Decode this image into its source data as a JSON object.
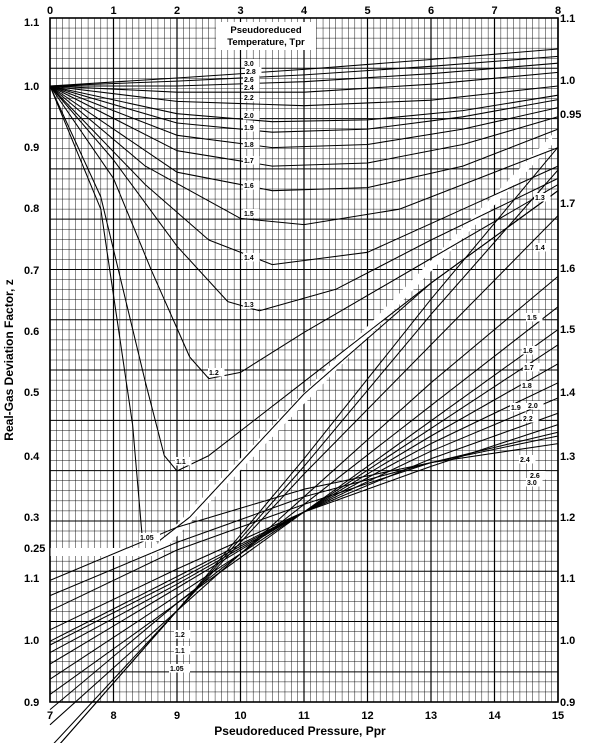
{
  "chart_data": {
    "type": "line",
    "title": "Pseudoreduced Temperature, Tpr",
    "xlabel": "Pseudoreduced Pressure, Ppr",
    "ylabel": "Real-Gas Deviation Factor, z",
    "grid": true,
    "upper_x_range": [
      0,
      8
    ],
    "upper_left_y_range": [
      0.25,
      1.1
    ],
    "upper_right_y_range": [
      0.95,
      1.8
    ],
    "lower_x_range": [
      7,
      15
    ],
    "lower_y_range": [
      0.9,
      1.15
    ],
    "upper_x_ticks": [
      "0",
      "1",
      "2",
      "3",
      "4",
      "5",
      "6",
      "7",
      "8"
    ],
    "upper_left_y_ticks": [
      "1.1",
      "1.0",
      "0.9",
      "0.8",
      "0.7",
      "0.6",
      "0.5",
      "0.4",
      "0.3",
      "0.25"
    ],
    "upper_right_y_ticks": [
      "1.1",
      "1.0",
      "0.95",
      "1.7",
      "1.6",
      "1.5",
      "1.4",
      "1.3",
      "1.2"
    ],
    "lower_x_ticks": [
      "7",
      "8",
      "9",
      "10",
      "11",
      "12",
      "13",
      "14",
      "15"
    ],
    "lower_y_ticks": [
      "1.1",
      "1.0",
      "0.9"
    ],
    "lower_right_y_ticks": [
      "1.1",
      "1.0",
      "0.9"
    ],
    "low_pressure_series": [
      {
        "name": "3.0",
        "x": [
          0,
          2,
          4,
          6,
          8
        ],
        "y": [
          1.0,
          1.013,
          1.027,
          1.043,
          1.06
        ]
      },
      {
        "name": "2.8",
        "x": [
          0,
          2,
          4,
          6,
          8
        ],
        "y": [
          1.0,
          1.008,
          1.018,
          1.032,
          1.048
        ]
      },
      {
        "name": "2.6",
        "x": [
          0,
          2,
          4,
          6,
          8
        ],
        "y": [
          1.0,
          1.0,
          1.007,
          1.02,
          1.037
        ]
      },
      {
        "name": "2.4",
        "x": [
          0,
          2,
          4,
          6,
          8
        ],
        "y": [
          1.0,
          0.99,
          0.99,
          1.003,
          1.022
        ]
      },
      {
        "name": "2.2",
        "x": [
          0,
          2,
          4,
          6,
          8
        ],
        "y": [
          1.0,
          0.975,
          0.968,
          0.977,
          1.0
        ]
      },
      {
        "name": "2.0",
        "x": [
          0,
          2,
          3.5,
          5,
          6.5,
          8
        ],
        "y": [
          1.0,
          0.955,
          0.942,
          0.945,
          0.96,
          0.985
        ]
      },
      {
        "name": "1.9",
        "x": [
          0,
          2,
          3.5,
          5,
          6.5,
          8
        ],
        "y": [
          1.0,
          0.94,
          0.925,
          0.93,
          0.95,
          0.978
        ]
      },
      {
        "name": "1.8",
        "x": [
          0,
          2,
          3.5,
          5,
          6.5,
          8
        ],
        "y": [
          1.0,
          0.92,
          0.9,
          0.905,
          0.93,
          0.965
        ]
      },
      {
        "name": "1.7",
        "x": [
          0,
          2,
          3.5,
          5,
          6.5,
          8
        ],
        "y": [
          1.0,
          0.895,
          0.87,
          0.875,
          0.905,
          0.95
        ]
      },
      {
        "name": "1.6",
        "x": [
          0,
          2,
          3.5,
          5,
          6.5,
          8
        ],
        "y": [
          1.0,
          0.86,
          0.83,
          0.835,
          0.87,
          0.93
        ]
      },
      {
        "name": "1.5",
        "x": [
          0,
          1.5,
          3,
          4,
          5.5,
          7,
          8
        ],
        "y": [
          1.0,
          0.87,
          0.785,
          0.775,
          0.8,
          0.86,
          0.9
        ]
      },
      {
        "name": "1.4",
        "x": [
          0,
          1.5,
          2.5,
          3.5,
          5,
          6.5,
          8
        ],
        "y": [
          1.0,
          0.84,
          0.75,
          0.71,
          0.73,
          0.8,
          0.87
        ]
      },
      {
        "name": "1.3",
        "x": [
          0,
          1,
          2,
          2.8,
          3.3,
          4.5,
          6,
          8
        ],
        "y": [
          1.0,
          0.88,
          0.74,
          0.65,
          0.635,
          0.67,
          0.75,
          0.85
        ]
      },
      {
        "name": "1.2",
        "x": [
          0,
          1,
          1.6,
          2.2,
          2.5,
          3,
          4,
          6,
          8
        ],
        "y": [
          1.0,
          0.85,
          0.7,
          0.56,
          0.525,
          0.535,
          0.6,
          0.72,
          0.84
        ]
      },
      {
        "name": "1.1",
        "x": [
          0,
          0.8,
          1.5,
          1.8,
          2,
          2.5,
          4,
          6,
          8
        ],
        "y": [
          1.0,
          0.82,
          0.52,
          0.4,
          0.375,
          0.4,
          0.52,
          0.68,
          0.83
        ]
      },
      {
        "name": "1.05",
        "x": [
          0,
          0.8,
          1.3,
          1.45,
          1.7,
          2.2,
          4,
          6,
          8
        ],
        "y": [
          1.0,
          0.8,
          0.45,
          0.27,
          0.26,
          0.3,
          0.5,
          0.68,
          0.83
        ]
      }
    ],
    "low_pressure_labels": [
      "3.0",
      "2.8",
      "2.6",
      "2.4",
      "2.2",
      "2.0",
      "1.9",
      "1.8",
      "1.7",
      "1.6",
      "1.5",
      "1.4",
      "1.3",
      "1.2",
      "1.1",
      "1.05"
    ],
    "high_pressure_series": [
      {
        "name": "3.0",
        "x": [
          7,
          9,
          11,
          13,
          15
        ],
        "y": [
          1.06,
          1.13,
          1.18,
          1.215,
          1.24
        ]
      },
      {
        "name": "2.6",
        "x": [
          7,
          9,
          11,
          13,
          15
        ],
        "y": [
          1.04,
          1.11,
          1.17,
          1.215,
          1.25
        ]
      },
      {
        "name": "2.4",
        "x": [
          7,
          9,
          11,
          13,
          15
        ],
        "y": [
          1.02,
          1.1,
          1.16,
          1.215,
          1.255
        ]
      },
      {
        "name": "2.2",
        "x": [
          7,
          9,
          11,
          13,
          15
        ],
        "y": [
          0.995,
          1.075,
          1.15,
          1.21,
          1.265
        ]
      },
      {
        "name": "2.0",
        "x": [
          7,
          9,
          11,
          13,
          15
        ],
        "y": [
          0.98,
          1.065,
          1.15,
          1.22,
          1.28
        ]
      },
      {
        "name": "1.9",
        "x": [
          7,
          9,
          11,
          13,
          15
        ],
        "y": [
          0.975,
          1.06,
          1.15,
          1.23,
          1.3
        ]
      },
      {
        "name": "1.8",
        "x": [
          7,
          9,
          11,
          13,
          15
        ],
        "y": [
          0.965,
          1.055,
          1.15,
          1.24,
          1.32
        ]
      },
      {
        "name": "1.7",
        "x": [
          7,
          9,
          11,
          13,
          15
        ],
        "y": [
          0.95,
          1.05,
          1.15,
          1.25,
          1.345
        ]
      },
      {
        "name": "1.6",
        "x": [
          7,
          9,
          11,
          13,
          15
        ],
        "y": [
          0.93,
          1.04,
          1.15,
          1.26,
          1.37
        ]
      },
      {
        "name": "1.5",
        "x": [
          7,
          9,
          11,
          13,
          15
        ],
        "y": [
          0.91,
          1.03,
          1.15,
          1.27,
          1.39
        ]
      },
      {
        "name": "1.4",
        "x": [
          7,
          9,
          11,
          13,
          15
        ],
        "y": [
          0.89,
          1.03,
          1.16,
          1.29,
          1.42
        ]
      },
      {
        "name": "1.3",
        "x": [
          7,
          9,
          11,
          13,
          15
        ],
        "y": [
          0.87,
          1.02,
          1.17,
          1.32,
          1.46
        ]
      },
      {
        "name": "1.2",
        "x": [
          7,
          9,
          11,
          13,
          15
        ],
        "y": [
          0.84,
          1.02,
          1.2,
          1.37,
          1.54
        ]
      },
      {
        "name": "1.1",
        "x": [
          7,
          9,
          11,
          13,
          15
        ],
        "y": [
          0.83,
          1.02,
          1.21,
          1.41,
          1.6
        ]
      },
      {
        "name": "1.05",
        "x": [
          7,
          9,
          11,
          13,
          15
        ],
        "y": [
          0.83,
          1.02,
          1.22,
          1.43,
          1.63
        ]
      }
    ],
    "high_pressure_labels": [
      "3.0",
      "2.6",
      "2.4",
      "2.2",
      "2.0",
      "1.9",
      "1.8",
      "1.7",
      "1.6",
      "1.5",
      "1.4",
      "1.3",
      "1.2",
      "1.1",
      "1.05"
    ]
  }
}
